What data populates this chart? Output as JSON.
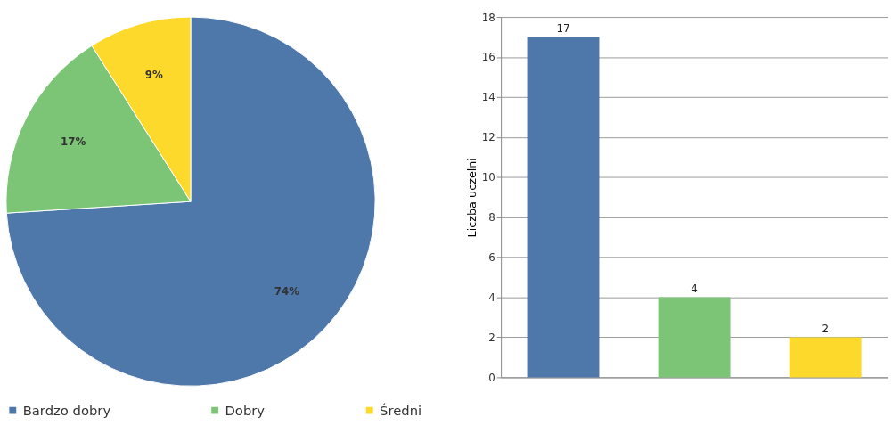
{
  "chart_data": [
    {
      "type": "pie",
      "categories": [
        "Bardzo dobry",
        "Dobry",
        "Średni"
      ],
      "values": [
        74,
        17,
        9
      ],
      "colors": [
        "#4e77aa",
        "#7cc576",
        "#fdd92b"
      ],
      "value_labels": [
        "74%",
        "17%",
        "9%"
      ],
      "legend": "bottom"
    },
    {
      "type": "bar",
      "categories": [
        null,
        null,
        null
      ],
      "values": [
        17,
        4,
        2
      ],
      "colors": [
        "#4e77aa",
        "#7cc576",
        "#fdd92b"
      ],
      "ylabel": "Liczba uczelni",
      "ylim": [
        0,
        18
      ],
      "yticks": [
        0,
        2,
        4,
        6,
        8,
        10,
        12,
        14,
        16,
        18
      ],
      "grid": "y",
      "data_labels": true
    }
  ]
}
